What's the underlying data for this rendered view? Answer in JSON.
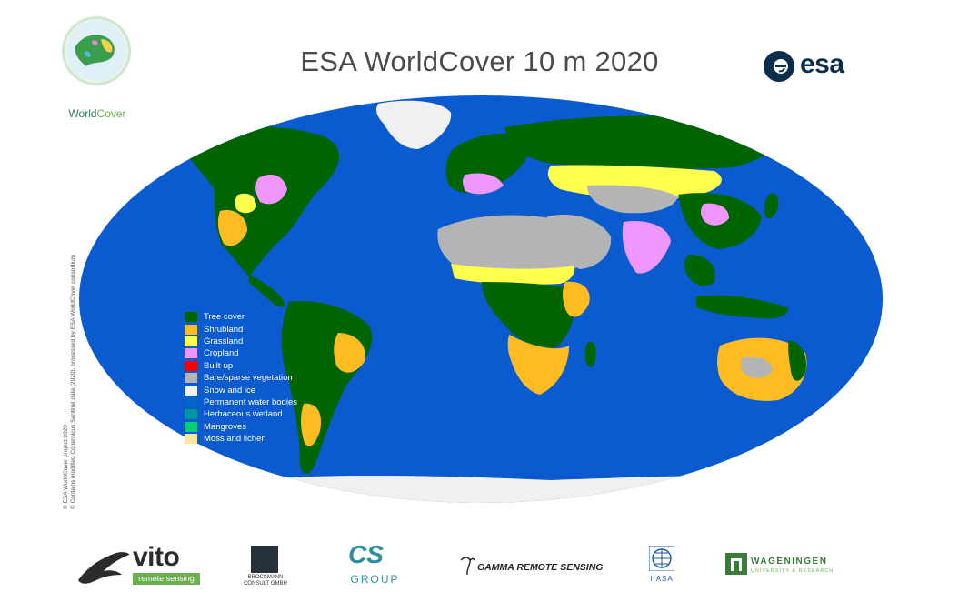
{
  "title": "ESA WorldCover 10 m 2020",
  "logos": {
    "worldcover": {
      "text_a": "World",
      "text_b": "Cover"
    },
    "esa": {
      "text": "esa"
    }
  },
  "legend": [
    {
      "label": "Tree cover",
      "color": "#006400"
    },
    {
      "label": "Shrubland",
      "color": "#FFBB22"
    },
    {
      "label": "Grassland",
      "color": "#FFFF4C"
    },
    {
      "label": "Cropland",
      "color": "#F096FF"
    },
    {
      "label": "Built-up",
      "color": "#FA0000"
    },
    {
      "label": "Bare/sparse vegetation",
      "color": "#B4B4B4"
    },
    {
      "label": "Snow and ice",
      "color": "#F0F0F0"
    },
    {
      "label": "Permanent water bodies",
      "color": "#0064C8"
    },
    {
      "label": "Herbaceous wetland",
      "color": "#0096A0"
    },
    {
      "label": "Mangroves",
      "color": "#00CF75"
    },
    {
      "label": "Moss and lichen",
      "color": "#FAE6A0"
    }
  ],
  "copyright": {
    "line1": "© ESA WorldCover project 2020",
    "line2": "© Contains modified Copernicus Sentinel data (2020), processed by ESA WorldCover consortium"
  },
  "partners": {
    "vito": {
      "name": "vito",
      "sub": "remote sensing"
    },
    "brockmann": {
      "name": "BROCKMANN CONSULT GMBH"
    },
    "cs": {
      "mark": "CS",
      "name": "GROUP"
    },
    "gamma": {
      "name": "GAMMA REMOTE SENSING"
    },
    "iiasa": {
      "name": "IIASA"
    },
    "wageningen": {
      "name": "WAGENINGEN",
      "sub": "UNIVERSITY & RESEARCH"
    }
  },
  "colors": {
    "ocean": "#0A5AD0",
    "tree": "#006400",
    "shrub": "#FFBB22",
    "grass": "#FFFF4C",
    "crop": "#F096FF",
    "bare": "#B4B4B4",
    "snow": "#F0F0F0"
  }
}
